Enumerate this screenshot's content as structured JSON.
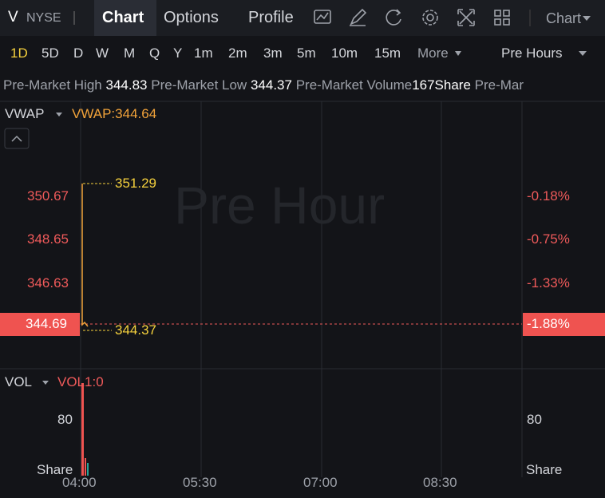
{
  "top_bar": {
    "symbol": "V",
    "exchange": "NYSE",
    "tabs": [
      "Chart",
      "Options",
      "Profile"
    ],
    "chart_menu": "Chart"
  },
  "timeframes": {
    "items": [
      "1D",
      "5D",
      "D",
      "W",
      "M",
      "Q",
      "Y",
      "1m",
      "2m",
      "3m",
      "5m",
      "10m",
      "15m"
    ],
    "more": "More",
    "session": "Pre Hours"
  },
  "stats": [
    {
      "label": "Pre-Market High",
      "value": "344.83"
    },
    {
      "label": "Pre-Market Low",
      "value": "344.37"
    },
    {
      "label": "Pre-Market Volume",
      "value": "167Share"
    },
    {
      "label": "Pre-Mar"
    }
  ],
  "price_panel": {
    "indicator": "VWAP",
    "indicator_value": "VWAP:344.64",
    "watermark": "Pre Hour",
    "left_axis": [
      "350.67",
      "348.65",
      "346.63"
    ],
    "right_axis": [
      "-0.18%",
      "-0.75%",
      "-1.33%"
    ],
    "current_price": "344.69",
    "current_change": "-1.88%",
    "high_marker": "351.29",
    "low_marker": "344.37"
  },
  "volume_panel": {
    "indicator": "VOL",
    "indicator_value": "VOL1:0",
    "left_axis": [
      "80",
      "Share"
    ],
    "right_axis": [
      "80",
      "Share"
    ]
  },
  "time_axis": [
    "04:00",
    "05:30",
    "07:00",
    "08:30"
  ]
}
